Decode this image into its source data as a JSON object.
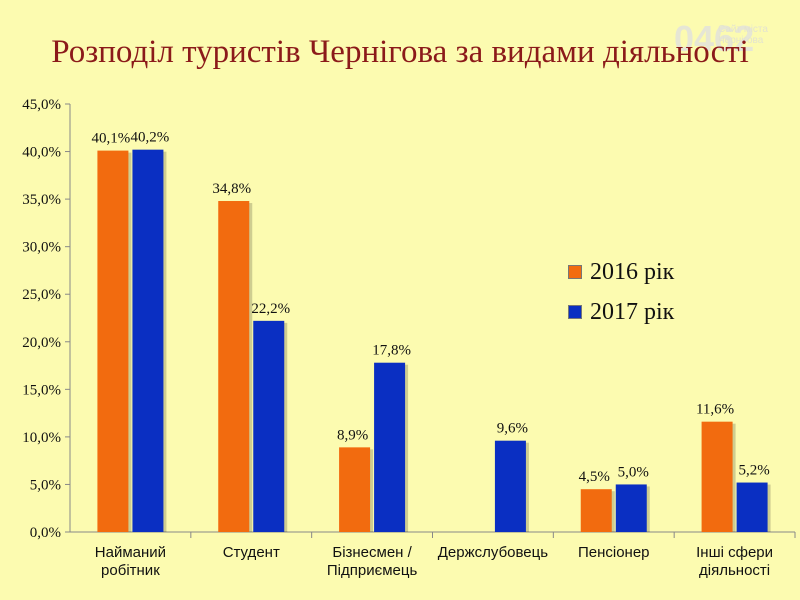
{
  "watermark": {
    "number": "0462",
    "site": "Сайт міста Чернігова"
  },
  "chart_data": {
    "type": "bar",
    "title": "Розподіл туристів Чернігова за видами діяльності",
    "categories": [
      [
        "Найманий",
        "робітник"
      ],
      [
        "Студент"
      ],
      [
        "Бізнесмен /",
        "Підприємець"
      ],
      [
        "Держслубовець"
      ],
      [
        "Пенсіонер"
      ],
      [
        "Інші сфери",
        "діяльності"
      ]
    ],
    "series": [
      {
        "name": "2016 рік",
        "color": "#f26b0f",
        "values": [
          40.1,
          34.8,
          8.9,
          null,
          4.5,
          11.6
        ],
        "labels": [
          "40,1%",
          "34,8%",
          "8,9%",
          "",
          "4,5%",
          "11,6%"
        ]
      },
      {
        "name": "2017 рік",
        "color": "#0a2fc2",
        "values": [
          40.2,
          22.2,
          17.8,
          9.6,
          5.0,
          5.2
        ],
        "labels": [
          "40,2%",
          "22,2%",
          "17,8%",
          "9,6%",
          "5,0%",
          "5,2%"
        ]
      }
    ],
    "y_ticks": [
      "0,0%",
      "5,0%",
      "10,0%",
      "15,0%",
      "20,0%",
      "25,0%",
      "30,0%",
      "35,0%",
      "40,0%",
      "45,0%"
    ],
    "ylim": [
      0,
      45
    ],
    "ystep": 5,
    "legend_position": "right"
  }
}
